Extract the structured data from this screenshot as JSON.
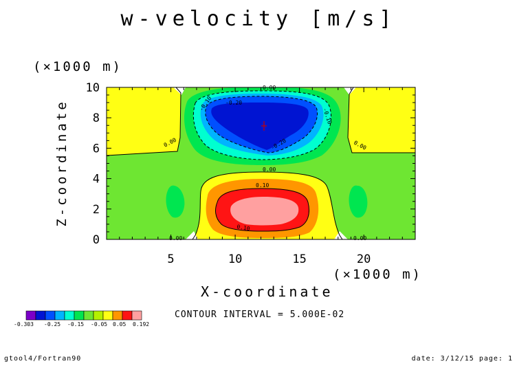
{
  "chart_data": {
    "type": "contour",
    "title": "w-velocity [m/s]",
    "xlabel": "X-coordinate",
    "ylabel": "Z-coordinate",
    "x_scale_label": "(×1000 m)",
    "y_scale_label": "(×1000 m)",
    "xlim": [
      0,
      24
    ],
    "ylim": [
      0,
      10
    ],
    "x_ticks": [
      "5",
      "10",
      "15",
      "20"
    ],
    "y_ticks": [
      "0",
      "2",
      "4",
      "6",
      "8",
      "10"
    ],
    "contour_labels": [
      "0.00",
      "0.00",
      "0.00",
      "0.00",
      "0.00",
      "0.00",
      "-0.10",
      "-0.10",
      "-0.20",
      "-0.20",
      "0.10",
      "0.10"
    ],
    "contour_interval": "CONTOUR INTERVAL = 5.000E-02",
    "colorbar": {
      "labels": [
        "-0.303",
        "-0.25",
        "-0.15",
        "-0.05",
        "0.05",
        "0.192"
      ],
      "colors": [
        "#7b00c8",
        "#0014d2",
        "#0050ff",
        "#00b4ff",
        "#00ffd0",
        "#00e650",
        "#6ee632",
        "#b4f000",
        "#ffff14",
        "#ff9600",
        "#ff1414",
        "#ffa0a0"
      ]
    }
  },
  "footer": {
    "left": "gtool4/Fortran90",
    "right": "date: 3/12/15 page: 1"
  }
}
